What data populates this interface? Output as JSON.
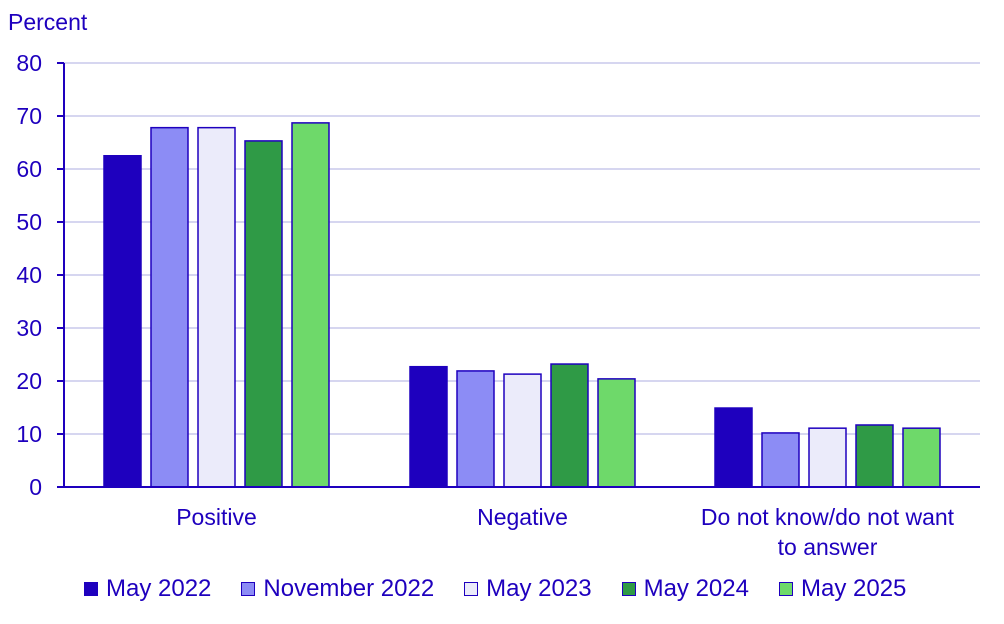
{
  "chart_data": {
    "type": "bar",
    "ylabel": "Percent",
    "ylim": [
      0,
      80
    ],
    "yticks": [
      0,
      10,
      20,
      30,
      40,
      50,
      60,
      70,
      80
    ],
    "categories": [
      [
        "Positive"
      ],
      [
        "Negative"
      ],
      [
        "Do not know/do not want",
        "to answer"
      ]
    ],
    "series": [
      {
        "name": "May 2022",
        "color": "#1e00be",
        "values": [
          62.5,
          22.7,
          14.9
        ]
      },
      {
        "name": "November 2022",
        "color": "#8c8cf5",
        "values": [
          67.8,
          21.9,
          10.2
        ]
      },
      {
        "name": "May 2023",
        "color": "#ebebfa",
        "values": [
          67.8,
          21.3,
          11.1
        ]
      },
      {
        "name": "May 2024",
        "color": "#2f9a46",
        "values": [
          65.3,
          23.2,
          11.7
        ]
      },
      {
        "name": "May 2025",
        "color": "#6ed96a",
        "values": [
          68.7,
          20.4,
          11.1
        ]
      }
    ],
    "grid": true,
    "legend_position": "bottom"
  }
}
